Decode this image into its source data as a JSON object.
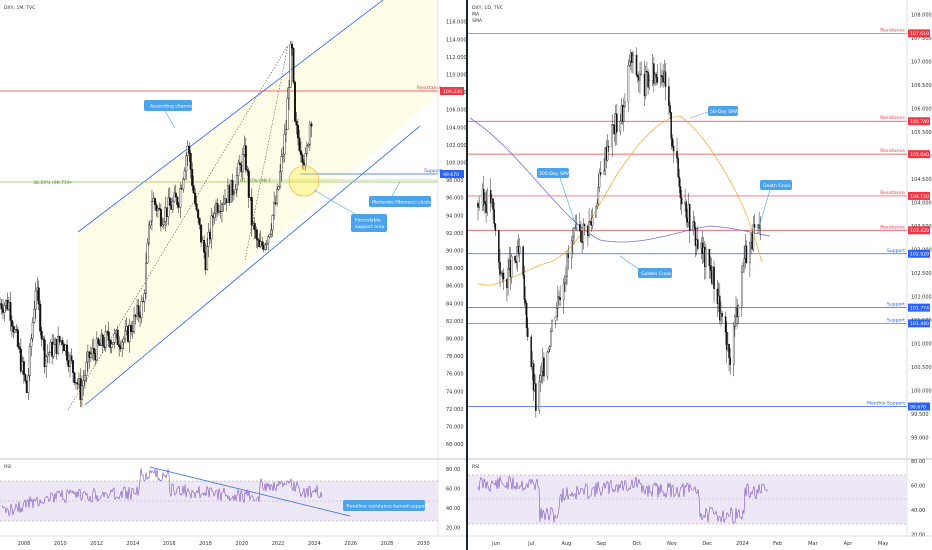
{
  "left_chart": {
    "header": "DXY, 1M, TVC",
    "price_ticks": [
      "116.000",
      "114.000",
      "112.000",
      "110.000",
      "108.000",
      "106.000",
      "104.000",
      "102.000",
      "100.000",
      "98.000",
      "96.000",
      "94.000",
      "92.000",
      "90.000",
      "88.000",
      "86.000",
      "84.000",
      "82.000",
      "80.000",
      "78.000",
      "76.000",
      "74.000",
      "72.000",
      "70.000",
      "68.000"
    ],
    "time_ticks": [
      "2008",
      "2010",
      "2012",
      "2014",
      "2016",
      "2018",
      "2020",
      "2022",
      "2024",
      "2026",
      "2028",
      "2030"
    ],
    "resistance_label": "Resistance",
    "resistance_value": "109.330",
    "support_label": "Support",
    "support_value": "99.670",
    "fib_left_label": "38.20% (98.719)",
    "fib_right_label": "61.80% (98.1",
    "callouts": {
      "ascending_channel": "Ascending channel",
      "fib_cluster": "Moderate Fibonacci cluster",
      "formidable_support": "Formidable support area",
      "trendline_support": "Trendline resistance-turned-support"
    },
    "rsi_label": "RSI",
    "rsi_ticks": [
      "80.00",
      "60.00",
      "40.00",
      "20.00"
    ]
  },
  "right_chart": {
    "header_lines": [
      "DXY, 1D, TVC",
      "MA",
      "SMA"
    ],
    "price_ticks": [
      "108.000",
      "107.500",
      "107.000",
      "106.500",
      "106.000",
      "105.500",
      "105.000",
      "104.500",
      "104.000",
      "103.500",
      "103.000",
      "102.500",
      "102.000",
      "101.500",
      "101.000",
      "100.500",
      "100.000",
      "99.500",
      "99.000"
    ],
    "time_ticks": [
      "Jun",
      "Jul",
      "Aug",
      "Sep",
      "Oct",
      "Nov",
      "Dec",
      "2024",
      "Feb",
      "Mar",
      "Apr",
      "May"
    ],
    "levels": [
      {
        "label": "Resistance",
        "value": "107.610",
        "kind": "resistance"
      },
      {
        "label": "Resistance",
        "value": "105.740",
        "kind": "resistance"
      },
      {
        "label": "Resistance",
        "value": "105.040",
        "kind": "resistance"
      },
      {
        "label": "Resistance",
        "value": "104.150",
        "kind": "resistance"
      },
      {
        "label": "Resistance",
        "value": "103.420",
        "kind": "resistance"
      },
      {
        "label": "Support",
        "value": "102.920",
        "kind": "support"
      },
      {
        "label": "Support",
        "value": "101.774",
        "kind": "support"
      },
      {
        "label": "Support",
        "value": "101.440",
        "kind": "support"
      },
      {
        "label": "Monthly Support",
        "value": "99.670",
        "kind": "support"
      }
    ],
    "callouts": {
      "sma50": "50-Day SMA",
      "sma200": "200-Day SMA",
      "golden_cross": "Golden Cross",
      "death_cross": "Death Cross"
    },
    "rsi_label": "RSI",
    "rsi_ticks": [
      "80.00",
      "60.00",
      "40.00",
      "20.00"
    ]
  },
  "colors": {
    "resistance": "#f23645",
    "support": "#2962ff",
    "channel_fill": "#fffde7",
    "callout": "#4aa3ec",
    "sma50": "#f5b041",
    "sma200": "#7b6fd6",
    "rsi_line": "#7e57c2",
    "rsi_band": "#ede7f6"
  },
  "chart_data": [
    {
      "type": "line",
      "title": "DXY, 1M, TVC",
      "x_range": [
        2006.5,
        2031
      ],
      "ylim": [
        67,
        118
      ],
      "approx_close_path": {
        "x": [
          2007.0,
          2008.0,
          2008.5,
          2009.0,
          2010.0,
          2011.0,
          2011.5,
          2012.5,
          2013.5,
          2014.5,
          2015.0,
          2015.5,
          2016.5,
          2017.0,
          2017.5,
          2018.0,
          2018.5,
          2019.5,
          2020.2,
          2020.6,
          2021.0,
          2021.5,
          2022.0,
          2022.5,
          2022.8,
          2023.0,
          2023.3,
          2023.6,
          2023.9,
          2024.0
        ],
        "y": [
          84,
          74,
          86,
          78,
          80,
          74,
          78,
          80,
          80,
          84,
          96,
          94,
          96,
          102,
          94,
          89,
          95,
          97,
          101,
          93,
          90,
          92,
          96,
          104,
          114,
          104,
          102,
          100,
          106,
          102
        ]
      },
      "horizontal_levels": [
        {
          "name": "Resistance",
          "y": 109.33
        },
        {
          "name": "Support",
          "y": 99.67
        },
        {
          "name": "38.20% Fibonacci",
          "y": 98.719
        }
      ],
      "rsi": {
        "ylim": [
          15,
          85
        ],
        "band": [
          30,
          70
        ]
      }
    },
    {
      "type": "line",
      "title": "DXY, 1D, TVC",
      "ylim": [
        98.8,
        108.2
      ],
      "approx_close_path": {
        "x": [
          "2023-05-25",
          "2023-06-05",
          "2023-06-15",
          "2023-06-30",
          "2023-07-14",
          "2023-07-31",
          "2023-08-15",
          "2023-08-31",
          "2023-09-15",
          "2023-09-30",
          "2023-10-03",
          "2023-10-15",
          "2023-10-31",
          "2023-11-15",
          "2023-11-30",
          "2023-12-15",
          "2023-12-28",
          "2024-01-10",
          "2024-01-20",
          "2024-01-25"
        ],
        "y": [
          104.0,
          104.1,
          102.3,
          102.9,
          99.7,
          101.8,
          103.2,
          103.6,
          105.4,
          106.1,
          107.1,
          106.5,
          106.9,
          104.4,
          103.2,
          102.4,
          100.6,
          102.9,
          103.4,
          103.2
        ]
      },
      "horizontal_levels": [
        {
          "name": "Resistance",
          "y": 107.61
        },
        {
          "name": "Resistance",
          "y": 105.74
        },
        {
          "name": "Resistance",
          "y": 105.04
        },
        {
          "name": "Resistance",
          "y": 104.15
        },
        {
          "name": "Resistance",
          "y": 103.42
        },
        {
          "name": "Support",
          "y": 102.92
        },
        {
          "name": "Support",
          "y": 101.774
        },
        {
          "name": "Support",
          "y": 101.44
        },
        {
          "name": "Monthly Support",
          "y": 99.67
        }
      ],
      "rsi": {
        "ylim": [
          20,
          80
        ],
        "band": [
          30,
          70
        ]
      }
    }
  ]
}
